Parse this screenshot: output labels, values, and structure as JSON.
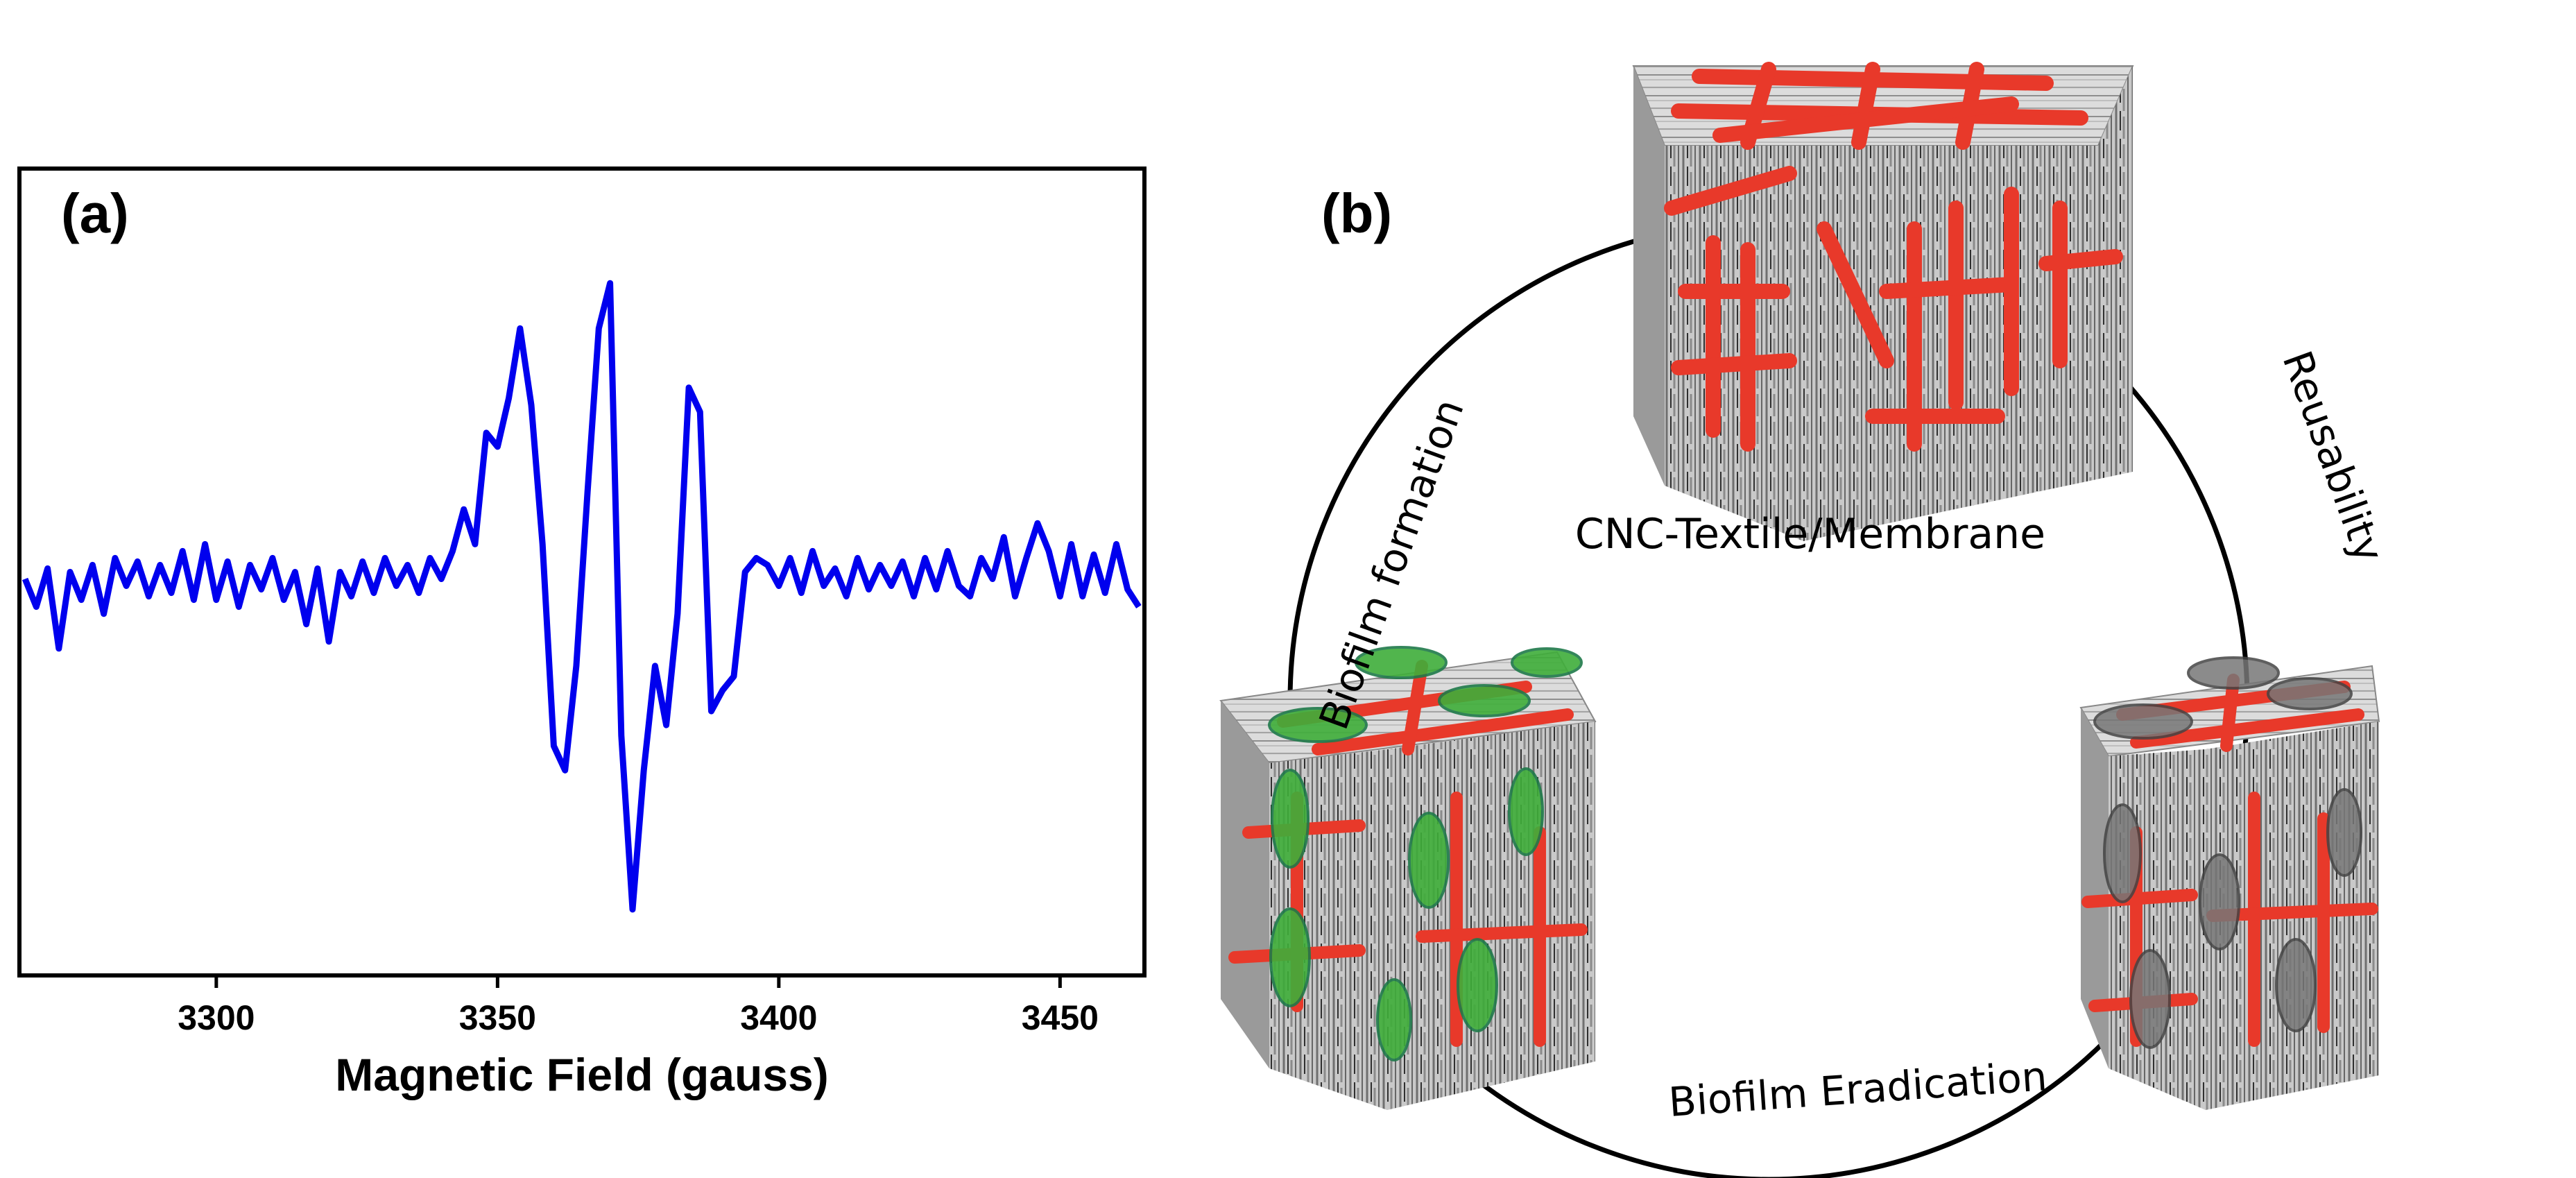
{
  "panel_a": {
    "label": "(a)"
  },
  "panel_b": {
    "label": "(b)",
    "center_caption": "CNC-Textile/Membrane",
    "arcs": {
      "left": "Biofilm formation",
      "right": "Reusability",
      "bottom": "Biofilm Eradication"
    },
    "colors": {
      "fiber": "#e8392a",
      "bacteria_alive": "#3fae3a",
      "bacteria_dead": "#777777",
      "cube_base": "#bdbdbd"
    }
  },
  "chart_data": {
    "type": "line",
    "title": "",
    "xlabel": "Magnetic Field (gauss)",
    "ylabel": "",
    "xlim": [
      3265,
      3465
    ],
    "ylim": [
      -1.0,
      1.0
    ],
    "xticks": [
      3300,
      3350,
      3400,
      3450
    ],
    "yticks_shown": false,
    "line_color": "#0000ee",
    "series": [
      {
        "x": [
          3266,
          3268,
          3270,
          3272,
          3274,
          3276,
          3278,
          3280,
          3282,
          3284,
          3286,
          3288,
          3290,
          3292,
          3294,
          3296,
          3298,
          3300,
          3302,
          3304,
          3306,
          3308,
          3310,
          3312,
          3314,
          3316,
          3318,
          3320,
          3322,
          3324,
          3326,
          3328,
          3330,
          3332,
          3334,
          3336,
          3338,
          3340,
          3342,
          3344,
          3346,
          3348,
          3350,
          3352,
          3354,
          3356,
          3358,
          3360,
          3362,
          3364,
          3366,
          3368,
          3370,
          3372,
          3374,
          3376,
          3378,
          3380,
          3382,
          3384,
          3386,
          3388,
          3390,
          3392,
          3394,
          3396,
          3398,
          3400,
          3402,
          3404,
          3406,
          3408,
          3410,
          3412,
          3414,
          3416,
          3418,
          3420,
          3422,
          3424,
          3426,
          3428,
          3430,
          3432,
          3434,
          3436,
          3438,
          3440,
          3442,
          3444,
          3446,
          3448,
          3450,
          3452,
          3454,
          3456,
          3458,
          3460,
          3462,
          3464
        ],
        "y": [
          0.0,
          -0.08,
          0.03,
          -0.2,
          0.02,
          -0.06,
          0.04,
          -0.1,
          0.06,
          -0.02,
          0.05,
          -0.05,
          0.04,
          -0.04,
          0.08,
          -0.06,
          0.1,
          -0.06,
          0.05,
          -0.08,
          0.04,
          -0.03,
          0.06,
          -0.06,
          0.02,
          -0.13,
          0.03,
          -0.18,
          0.02,
          -0.05,
          0.05,
          -0.04,
          0.06,
          -0.02,
          0.04,
          -0.04,
          0.06,
          0.0,
          0.08,
          0.2,
          0.1,
          0.42,
          0.38,
          0.52,
          0.72,
          0.5,
          0.1,
          -0.48,
          -0.55,
          -0.25,
          0.25,
          0.72,
          0.85,
          -0.45,
          -0.95,
          -0.55,
          -0.25,
          -0.42,
          -0.1,
          0.55,
          0.48,
          -0.38,
          -0.32,
          -0.28,
          0.02,
          0.06,
          0.04,
          -0.02,
          0.06,
          -0.04,
          0.08,
          -0.02,
          0.03,
          -0.05,
          0.06,
          -0.03,
          0.04,
          -0.02,
          0.05,
          -0.05,
          0.06,
          -0.03,
          0.08,
          -0.02,
          -0.05,
          0.06,
          0.0,
          0.12,
          -0.05,
          0.06,
          0.16,
          0.08,
          -0.05,
          0.1,
          -0.05,
          0.07,
          -0.04,
          0.1,
          -0.03,
          -0.08
        ]
      }
    ]
  }
}
